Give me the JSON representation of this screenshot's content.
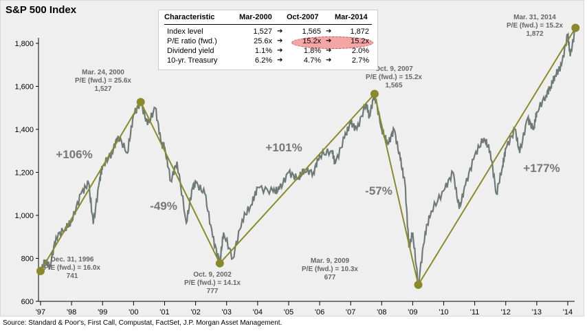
{
  "title": "S&P 500 Index",
  "source": "Source: Standard & Poor's, First Call, Compustat, FactSet, J.P. Morgan Asset Management.",
  "table": {
    "headers": [
      "Characteristic",
      "Mar-2000",
      "Oct-2007",
      "Mar-2014"
    ],
    "rows": [
      [
        "Index level",
        "1,527",
        "1,565",
        "1,872"
      ],
      [
        "P/E ratio (fwd.)",
        "25.6x",
        "15.2x",
        "15.2x"
      ],
      [
        "Dividend yield",
        "1.1%",
        "1.8%",
        "2.0%"
      ],
      [
        "10-yr. Treasury",
        "6.2%",
        "4.7%",
        "2.7%"
      ]
    ],
    "highlight_color": "#f4a6a6"
  },
  "chart_data": {
    "type": "line",
    "title": "S&P 500 Index",
    "ylim": [
      600,
      1800
    ],
    "yticks": [
      "600",
      "800",
      "1,000",
      "1,200",
      "1,400",
      "1,600",
      "1,800"
    ],
    "ytick_values": [
      600,
      800,
      1000,
      1200,
      1400,
      1600,
      1800
    ],
    "xlim": [
      1997,
      2014.3
    ],
    "xticks": [
      "'97",
      "'98",
      "'99",
      "'00",
      "'01",
      "'02",
      "'03",
      "'04",
      "'05",
      "'06",
      "'07",
      "'08",
      "'09",
      "'10",
      "'11",
      "'12",
      "'13",
      "'14"
    ],
    "grid": false,
    "series_color": "#6e7a76",
    "trend_color": "#8a8a2a",
    "series": [
      {
        "x": [
          1997.0,
          1997.15,
          1997.3,
          1997.5,
          1997.8,
          1998.0,
          1998.3,
          1998.55,
          1998.7,
          1998.9,
          1999.0,
          1999.3,
          1999.5,
          1999.8,
          2000.0,
          2000.23,
          2000.45,
          2000.7,
          2000.9,
          2001.0,
          2001.2,
          2001.4,
          2001.7,
          2001.9,
          2002.0,
          2002.3,
          2002.55,
          2002.78,
          2002.9,
          2003.2,
          2003.5,
          2003.8,
          2004.0,
          2004.5,
          2004.7,
          2005.0,
          2005.3,
          2005.5,
          2005.8,
          2006.0,
          2006.4,
          2006.5,
          2006.8,
          2007.0,
          2007.2,
          2007.5,
          2007.6,
          2007.77,
          2008.0,
          2008.2,
          2008.4,
          2008.6,
          2008.75,
          2008.88,
          2009.0,
          2009.18,
          2009.4,
          2009.6,
          2010.0,
          2010.3,
          2010.5,
          2010.7,
          2011.0,
          2011.3,
          2011.5,
          2011.7,
          2011.9,
          2012.0,
          2012.3,
          2012.45,
          2012.7,
          2012.9,
          2013.0,
          2013.3,
          2013.45,
          2013.6,
          2013.8,
          2014.0,
          2014.08,
          2014.25
        ],
        "y": [
          741,
          790,
          760,
          900,
          940,
          970,
          1100,
          1150,
          960,
          1160,
          1229,
          1290,
          1370,
          1290,
          1469,
          1527,
          1420,
          1500,
          1330,
          1320,
          1160,
          1250,
          965,
          1130,
          1150,
          1100,
          900,
          777,
          920,
          800,
          980,
          1050,
          1130,
          1110,
          1120,
          1200,
          1170,
          1210,
          1200,
          1280,
          1300,
          1240,
          1360,
          1430,
          1400,
          1520,
          1460,
          1565,
          1400,
          1330,
          1400,
          1260,
          1150,
          850,
          920,
          677,
          920,
          1020,
          1115,
          1200,
          1030,
          1140,
          1280,
          1360,
          1300,
          1100,
          1230,
          1310,
          1400,
          1290,
          1450,
          1400,
          1480,
          1560,
          1600,
          1650,
          1700,
          1840,
          1740,
          1872
        ]
      }
    ],
    "trend_points": [
      {
        "x": 1997.0,
        "y": 741
      },
      {
        "x": 2000.23,
        "y": 1527
      },
      {
        "x": 2002.78,
        "y": 777
      },
      {
        "x": 2007.77,
        "y": 1565
      },
      {
        "x": 2009.18,
        "y": 677
      },
      {
        "x": 2014.25,
        "y": 1872
      }
    ],
    "point_labels": [
      {
        "date": "Dec. 31, 1996",
        "pe": "P/E (fwd.) = 16.0x",
        "value": "741"
      },
      {
        "date": "Mar. 24, 2000",
        "pe": "P/E (fwd.) = 25.6x",
        "value": "1,527"
      },
      {
        "date": "Oct. 9, 2002",
        "pe": "P/E (fwd.) = 14.1x",
        "value": "777"
      },
      {
        "date": "Oct. 9, 2007",
        "pe": "P/E (fwd.) = 15.2x",
        "value": "1,565"
      },
      {
        "date": "Mar. 9, 2009",
        "pe": "P/E (fwd.) = 10.3x",
        "value": "677"
      },
      {
        "date": "Mar. 31, 2014",
        "pe": "P/E (fwd.) = 15.2x",
        "value": "1,872"
      }
    ],
    "annotations": [
      "+106%",
      "-49%",
      "+101%",
      "-57%",
      "+177%"
    ]
  }
}
